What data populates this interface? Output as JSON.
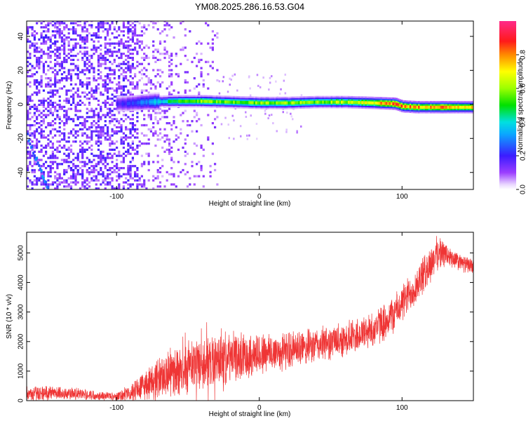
{
  "title": "YM08.2025.286.16.53.G04",
  "chart_data": [
    {
      "type": "heatmap",
      "panel": "spectrogram",
      "xlabel": "Height of straight line (km)",
      "ylabel": "Frequency (Hz)",
      "xlim": [
        -163,
        150
      ],
      "ylim": [
        -50,
        49
      ],
      "xticks": [
        -100,
        0,
        100
      ],
      "xtick_labels": [
        "-100",
        "0",
        "100"
      ],
      "yticks": [
        -40,
        -20,
        0,
        20,
        40
      ],
      "ytick_labels": [
        "-40",
        "-20",
        "0",
        "20",
        "40"
      ],
      "colorbar": {
        "label": "Normalized spectral amplitude",
        "range": [
          0,
          1
        ],
        "ticks": [
          0.0,
          0.2,
          0.4,
          0.6,
          0.8
        ],
        "tick_labels": [
          "0.0",
          "0.2",
          "0.4",
          "0.6",
          "0.8"
        ],
        "colormap": "rainbow (white-violet-blue-cyan-green-yellow-red-magenta)"
      },
      "ridge": {
        "description": "signal ridge near 0 Hz",
        "x": [
          -95,
          -80,
          -60,
          -40,
          -20,
          0,
          20,
          40,
          60,
          80,
          95,
          100,
          110,
          130,
          150
        ],
        "frequency": [
          0,
          1,
          1.5,
          1.5,
          1,
          0.5,
          0.5,
          1,
          1,
          0.5,
          0,
          -1.5,
          -2,
          -2,
          -2
        ],
        "amplitude": [
          0.2,
          0.3,
          0.5,
          0.6,
          0.55,
          0.6,
          0.6,
          0.6,
          0.65,
          0.75,
          0.9,
          0.8,
          0.8,
          0.8,
          0.8
        ]
      },
      "noise_region_x": [
        -163,
        -30
      ],
      "grid": false
    },
    {
      "type": "line",
      "panel": "snr",
      "xlabel": "Height of straight line (km)",
      "ylabel": "SNR (10 * v/v)",
      "xlim": [
        -163,
        150
      ],
      "ylim": [
        0,
        5700
      ],
      "xticks": [
        -100,
        0,
        100
      ],
      "xtick_labels": [
        "-100",
        "0",
        "100"
      ],
      "yticks": [
        0,
        1000,
        2000,
        3000,
        4000,
        5000
      ],
      "ytick_labels": [
        "0",
        "1000",
        "2000",
        "3000",
        "4000",
        "5000"
      ],
      "color": "#ef3535",
      "series": [
        {
          "x": [
            -163,
            -150,
            -140,
            -130,
            -120,
            -110,
            -100,
            -90,
            -85,
            -80,
            -75,
            -70,
            -60,
            -50,
            -40,
            -30,
            -20,
            -10,
            0,
            10,
            20,
            30,
            40,
            50,
            60,
            70,
            80,
            90,
            95,
            100,
            105,
            110,
            115,
            120,
            125,
            130,
            135,
            140,
            145,
            150
          ],
          "y": [
            220,
            260,
            250,
            230,
            200,
            170,
            150,
            260,
            400,
            520,
            650,
            780,
            980,
            1120,
            1250,
            1350,
            1450,
            1530,
            1580,
            1630,
            1700,
            1760,
            1870,
            1970,
            2090,
            2230,
            2420,
            2760,
            2980,
            3280,
            3600,
            3900,
            4250,
            4620,
            5020,
            4970,
            4800,
            4690,
            4600,
            4560
          ],
          "spread": [
            260,
            260,
            240,
            220,
            180,
            150,
            150,
            350,
            450,
            550,
            650,
            750,
            850,
            900,
            950,
            900,
            850,
            800,
            750,
            700,
            650,
            620,
            600,
            600,
            600,
            600,
            620,
            650,
            650,
            650,
            650,
            650,
            650,
            650,
            600,
            450,
            350,
            300,
            280,
            250
          ]
        }
      ],
      "grid": false
    }
  ]
}
